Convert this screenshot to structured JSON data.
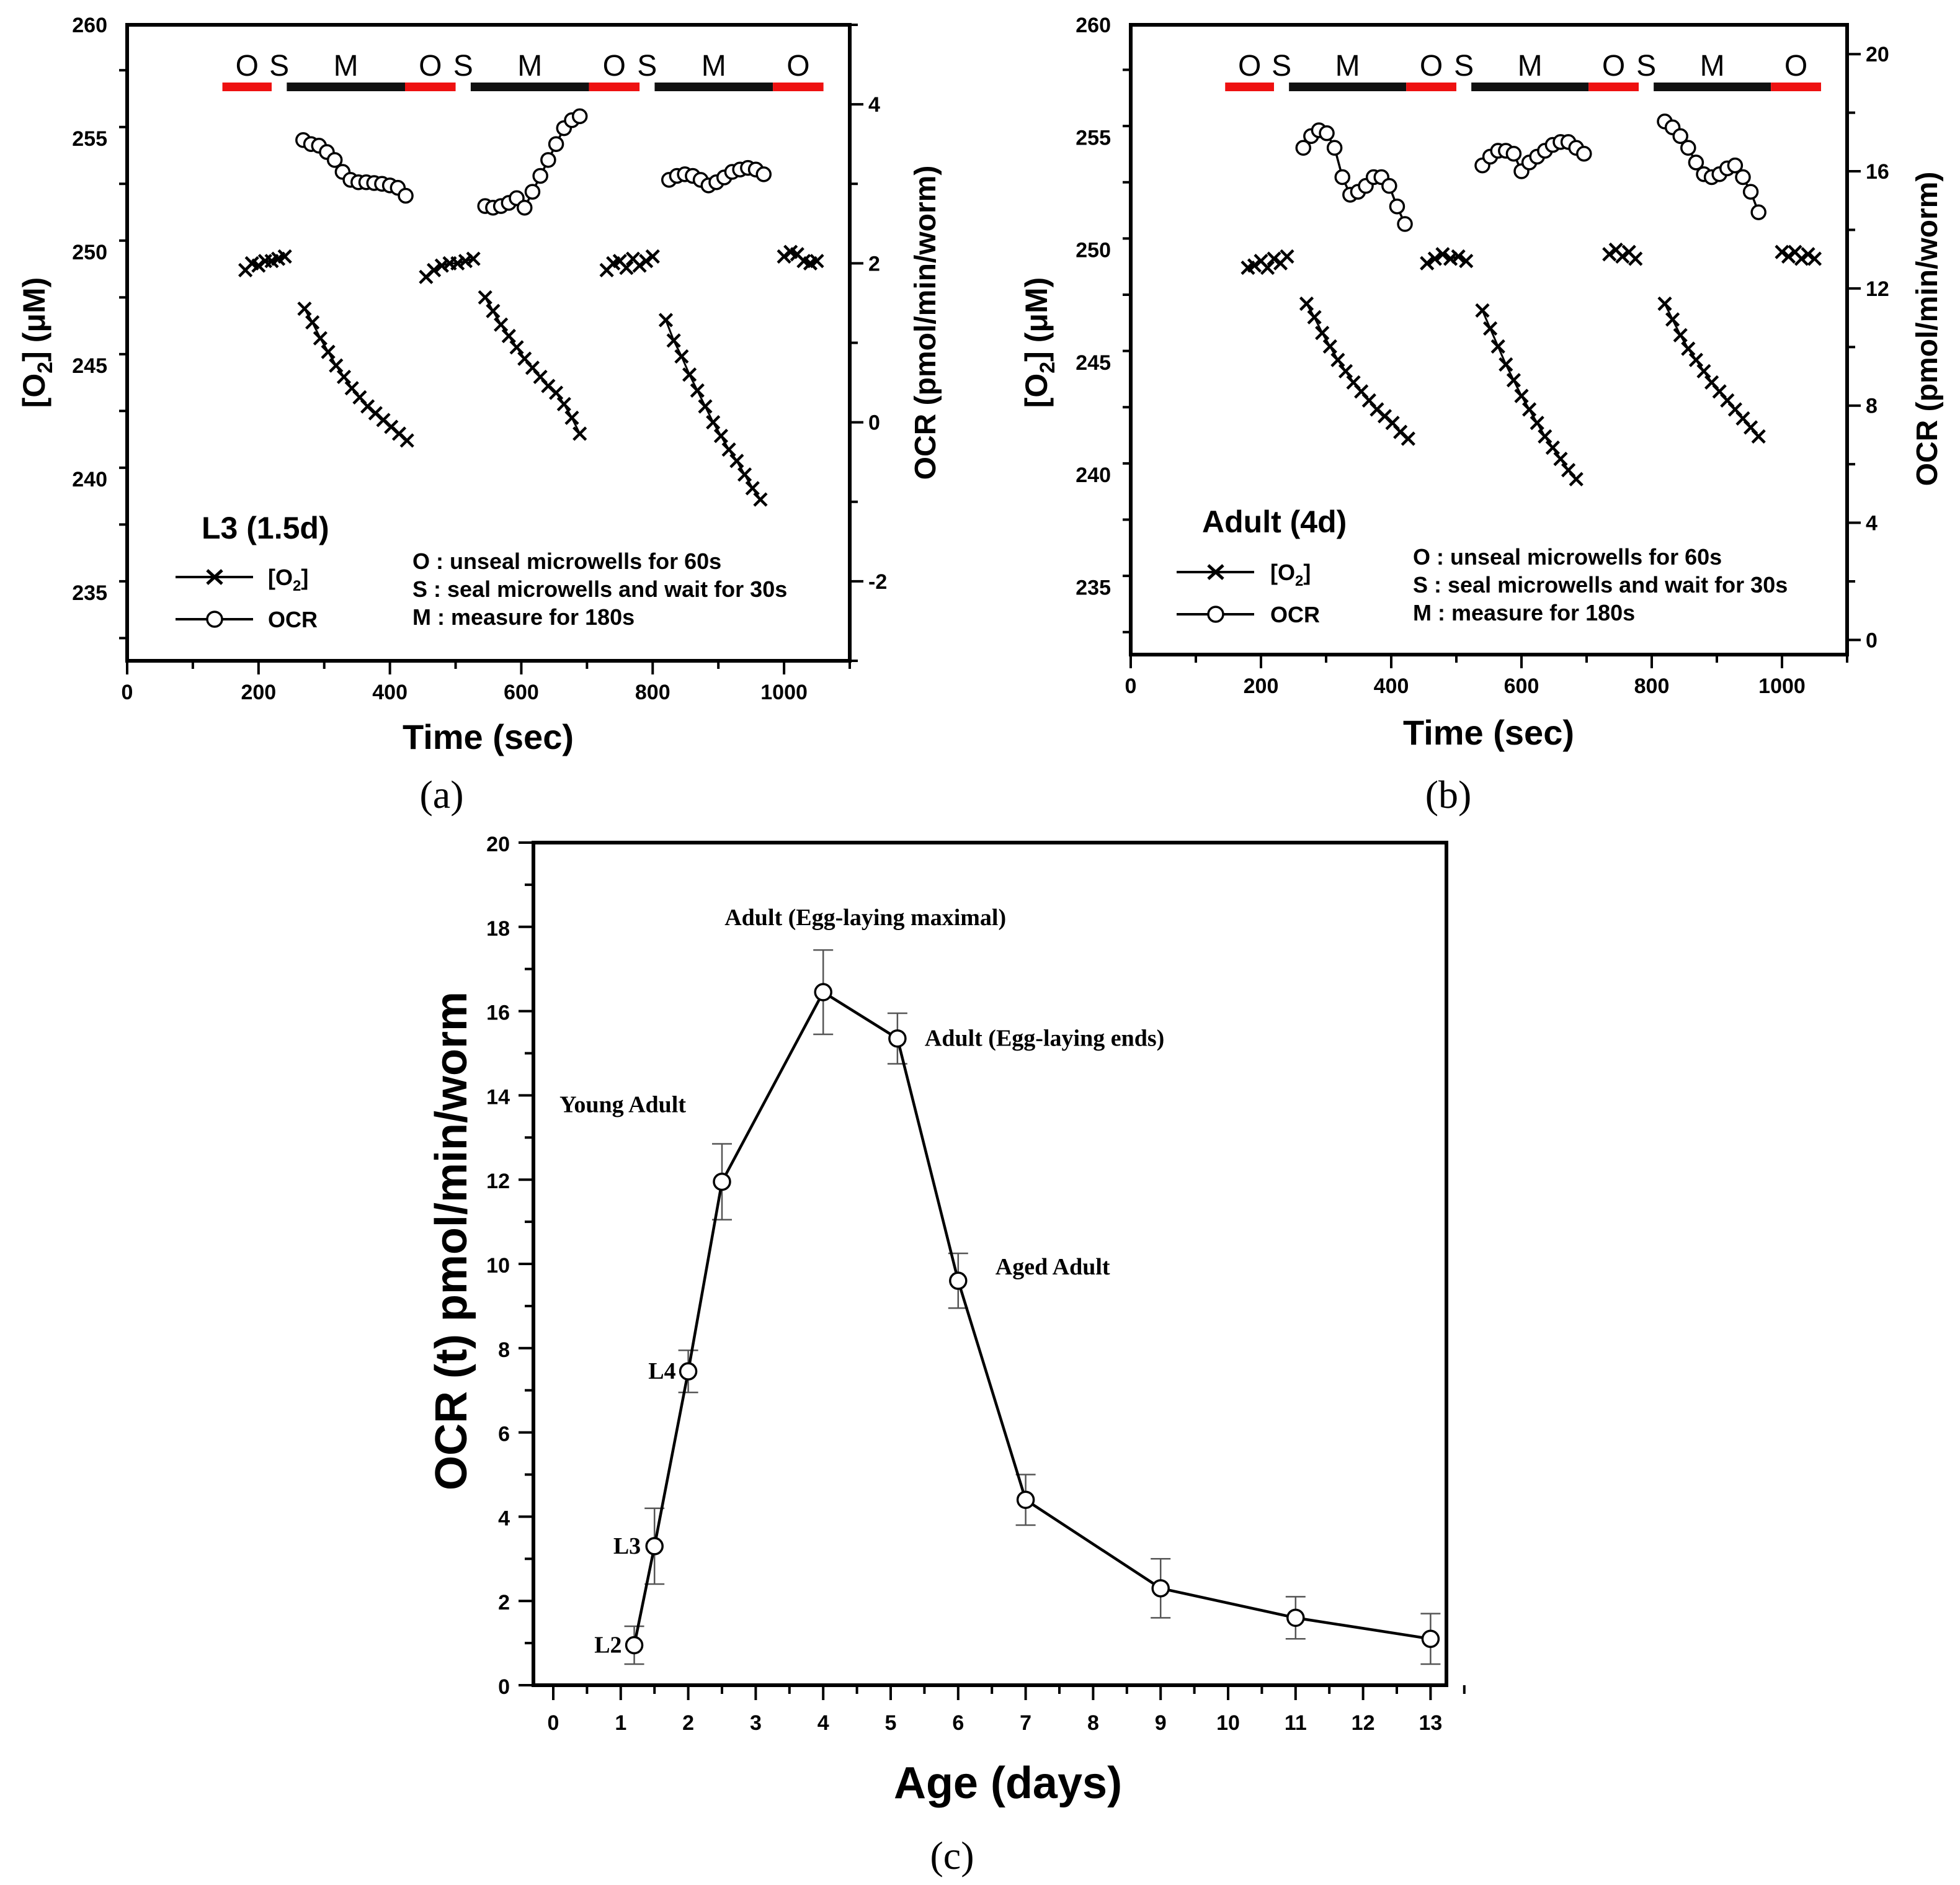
{
  "chart_data": [
    {
      "type": "scatter",
      "panel": "a",
      "caption": "(a)",
      "xlabel": "Time (sec)",
      "ylabel_left": "[O2] (μM)",
      "ylabel_right": "OCR (pmol/min/worm)",
      "xlim": [
        0,
        1100
      ],
      "ylim_left": [
        232,
        260
      ],
      "ylim_right": [
        -3,
        5
      ],
      "x_ticks": [
        "0",
        "200",
        "400",
        "600",
        "800",
        "1000"
      ],
      "y_left_ticks": [
        "235",
        "240",
        "245",
        "250",
        "255",
        "260"
      ],
      "y_right_ticks": [
        "-2",
        "0",
        "2",
        "4"
      ],
      "title": "L3 (1.5d)",
      "phase_labels": [
        "O",
        "S",
        "M",
        "O",
        "S",
        "M",
        "O",
        "S",
        "M",
        "O"
      ],
      "phases": [
        {
          "label": "O",
          "start": 145,
          "end": 220,
          "color": "#ee1111"
        },
        {
          "label": "S",
          "start": 220,
          "end": 243,
          "color": ""
        },
        {
          "label": "M",
          "start": 243,
          "end": 423,
          "color": "#111111"
        },
        {
          "label": "O",
          "start": 423,
          "end": 500,
          "color": "#ee1111"
        },
        {
          "label": "S",
          "start": 500,
          "end": 523,
          "color": ""
        },
        {
          "label": "M",
          "start": 523,
          "end": 703,
          "color": "#111111"
        },
        {
          "label": "O",
          "start": 703,
          "end": 780,
          "color": "#ee1111"
        },
        {
          "label": "S",
          "start": 780,
          "end": 803,
          "color": ""
        },
        {
          "label": "M",
          "start": 803,
          "end": 983,
          "color": "#111111"
        },
        {
          "label": "O",
          "start": 983,
          "end": 1060,
          "color": "#ee1111"
        }
      ],
      "legend": [
        "[O2]",
        "OCR"
      ],
      "notes": [
        "O : unseal microwells for 60s",
        "S : seal microwells and wait for 30s",
        "M : measure for 180s"
      ],
      "o2_series": [
        {
          "x": [
            180,
            190,
            200,
            210,
            220,
            230,
            240
          ],
          "y": [
            249.2,
            249.5,
            249.4,
            249.6,
            249.6,
            249.7,
            249.8
          ]
        },
        {
          "x": [
            270,
            282,
            294,
            306,
            318,
            330,
            342,
            354,
            366,
            378,
            390,
            402,
            414,
            426
          ],
          "y": [
            247.5,
            246.9,
            246.2,
            245.6,
            245.0,
            244.5,
            244.0,
            243.6,
            243.2,
            242.9,
            242.6,
            242.3,
            242.0,
            241.7
          ]
        },
        {
          "x": [
            455,
            467,
            479,
            491,
            503,
            515,
            527
          ],
          "y": [
            248.9,
            249.2,
            249.4,
            249.5,
            249.5,
            249.6,
            249.7
          ]
        },
        {
          "x": [
            545,
            557,
            569,
            581,
            593,
            605,
            617,
            629,
            641,
            653,
            665,
            677,
            689
          ],
          "y": [
            248.0,
            247.4,
            246.8,
            246.3,
            245.8,
            245.3,
            244.9,
            244.5,
            244.1,
            243.8,
            243.3,
            242.7,
            242.0
          ]
        },
        {
          "x": [
            730,
            740,
            750,
            760,
            770,
            780,
            790,
            800
          ],
          "y": [
            249.2,
            249.5,
            249.6,
            249.3,
            249.7,
            249.4,
            249.6,
            249.8
          ]
        },
        {
          "x": [
            820,
            832,
            844,
            856,
            868,
            880,
            892,
            904,
            916,
            928,
            940,
            952,
            964
          ],
          "y": [
            247.0,
            246.1,
            245.4,
            244.6,
            243.9,
            243.2,
            242.5,
            241.9,
            241.3,
            240.8,
            240.2,
            239.6,
            239.1
          ]
        },
        {
          "x": [
            1000,
            1010,
            1020,
            1030,
            1040,
            1050
          ],
          "y": [
            249.8,
            250.0,
            249.9,
            249.6,
            249.5,
            249.6
          ]
        }
      ],
      "ocr_series": [
        {
          "x": [
            268,
            280,
            292,
            304,
            316,
            328,
            340,
            352,
            364,
            376,
            388,
            400,
            412,
            424
          ],
          "y": [
            3.55,
            3.5,
            3.48,
            3.4,
            3.3,
            3.15,
            3.05,
            3.02,
            3.02,
            3.01,
            3.0,
            2.98,
            2.95,
            2.85
          ]
        },
        {
          "x": [
            545,
            557,
            569,
            581,
            593,
            605,
            617,
            629,
            641,
            653,
            665,
            677,
            689
          ],
          "y": [
            2.72,
            2.7,
            2.72,
            2.76,
            2.82,
            2.7,
            2.9,
            3.1,
            3.3,
            3.5,
            3.7,
            3.8,
            3.85
          ]
        },
        {
          "x": [
            825,
            837,
            849,
            861,
            873,
            885,
            897,
            909,
            921,
            933,
            945,
            957,
            969
          ],
          "y": [
            3.05,
            3.1,
            3.12,
            3.1,
            3.05,
            2.98,
            3.02,
            3.08,
            3.15,
            3.18,
            3.2,
            3.18,
            3.12
          ]
        }
      ]
    },
    {
      "type": "scatter",
      "panel": "b",
      "caption": "(b)",
      "xlabel": "Time (sec)",
      "ylabel_left": "[O2] (μM)",
      "ylabel_right": "OCR (pmol/min/worm)",
      "xlim": [
        0,
        1100
      ],
      "ylim_left": [
        232,
        260
      ],
      "ylim_right": [
        -0.5,
        21
      ],
      "x_ticks": [
        "0",
        "200",
        "400",
        "600",
        "800",
        "1000"
      ],
      "y_left_ticks": [
        "235",
        "240",
        "245",
        "250",
        "255",
        "260"
      ],
      "y_right_ticks": [
        "0",
        "4",
        "8",
        "12",
        "16",
        "20"
      ],
      "title": "Adult (4d)",
      "phase_labels": [
        "O",
        "S",
        "M",
        "O",
        "S",
        "M",
        "O",
        "S",
        "M",
        "O"
      ],
      "phases": [
        {
          "label": "O",
          "start": 145,
          "end": 220,
          "color": "#ee1111"
        },
        {
          "label": "S",
          "start": 220,
          "end": 243,
          "color": ""
        },
        {
          "label": "M",
          "start": 243,
          "end": 423,
          "color": "#111111"
        },
        {
          "label": "O",
          "start": 423,
          "end": 500,
          "color": "#ee1111"
        },
        {
          "label": "S",
          "start": 500,
          "end": 523,
          "color": ""
        },
        {
          "label": "M",
          "start": 523,
          "end": 703,
          "color": "#111111"
        },
        {
          "label": "O",
          "start": 703,
          "end": 780,
          "color": "#ee1111"
        },
        {
          "label": "S",
          "start": 780,
          "end": 803,
          "color": ""
        },
        {
          "label": "M",
          "start": 803,
          "end": 983,
          "color": "#111111"
        },
        {
          "label": "O",
          "start": 983,
          "end": 1060,
          "color": "#ee1111"
        }
      ],
      "legend": [
        "[O2]",
        "OCR"
      ],
      "notes": [
        "O : unseal microwells for 60s",
        "S : seal microwells and wait for 30s",
        "M : measure for 180s"
      ],
      "o2_series": [
        {
          "x": [
            180,
            190,
            200,
            210,
            220,
            230,
            240
          ],
          "y": [
            249.2,
            249.3,
            249.5,
            249.2,
            249.6,
            249.4,
            249.7
          ]
        },
        {
          "x": [
            270,
            282,
            294,
            306,
            318,
            330,
            342,
            354,
            366,
            378,
            390,
            402,
            414,
            426
          ],
          "y": [
            247.6,
            247.0,
            246.3,
            245.7,
            245.1,
            244.6,
            244.1,
            243.7,
            243.3,
            242.9,
            242.6,
            242.3,
            241.9,
            241.6
          ]
        },
        {
          "x": [
            455,
            467,
            479,
            491,
            503,
            515
          ],
          "y": [
            249.4,
            249.6,
            249.8,
            249.6,
            249.7,
            249.5
          ]
        },
        {
          "x": [
            540,
            552,
            564,
            576,
            588,
            600,
            612,
            624,
            636,
            648,
            660,
            672,
            684
          ],
          "y": [
            247.3,
            246.5,
            245.7,
            244.9,
            244.2,
            243.5,
            242.9,
            242.3,
            241.7,
            241.2,
            240.7,
            240.2,
            239.8
          ]
        },
        {
          "x": [
            735,
            745,
            755,
            765,
            775
          ],
          "y": [
            249.8,
            250.0,
            249.7,
            249.9,
            249.6
          ]
        },
        {
          "x": [
            820,
            832,
            844,
            856,
            868,
            880,
            892,
            904,
            916,
            928,
            940,
            952,
            964
          ],
          "y": [
            247.6,
            246.9,
            246.2,
            245.6,
            245.1,
            244.6,
            244.1,
            243.7,
            243.3,
            242.9,
            242.5,
            242.1,
            241.7
          ]
        },
        {
          "x": [
            1000,
            1010,
            1020,
            1030,
            1040,
            1050
          ],
          "y": [
            249.9,
            249.7,
            249.9,
            249.6,
            249.8,
            249.6
          ]
        }
      ],
      "ocr_series": [
        {
          "x": [
            265,
            277,
            289,
            301,
            313,
            325,
            337,
            349,
            361,
            373,
            385,
            397,
            409,
            421
          ],
          "y": [
            16.8,
            17.2,
            17.4,
            17.3,
            16.8,
            15.8,
            15.2,
            15.3,
            15.5,
            15.8,
            15.8,
            15.5,
            14.8,
            14.2
          ]
        },
        {
          "x": [
            540,
            552,
            564,
            576,
            588,
            600,
            612,
            624,
            636,
            648,
            660,
            672,
            684,
            696
          ],
          "y": [
            16.2,
            16.5,
            16.7,
            16.7,
            16.6,
            16.0,
            16.3,
            16.5,
            16.7,
            16.9,
            17.0,
            17.0,
            16.8,
            16.6
          ]
        },
        {
          "x": [
            820,
            832,
            844,
            856,
            868,
            880,
            892,
            904,
            916,
            928,
            940,
            952,
            964
          ],
          "y": [
            17.7,
            17.5,
            17.2,
            16.8,
            16.3,
            15.9,
            15.8,
            15.9,
            16.1,
            16.2,
            15.8,
            15.3,
            14.6
          ]
        }
      ]
    },
    {
      "type": "line",
      "panel": "c",
      "caption": "(c)",
      "xlabel": "Age (days)",
      "ylabel": "OCR (t) pmol/min/worm",
      "xlim": [
        0,
        13.5
      ],
      "ylim": [
        0,
        20
      ],
      "x_ticks": [
        "0",
        "1",
        "2",
        "3",
        "4",
        "5",
        "6",
        "7",
        "8",
        "9",
        "10",
        "11",
        "12",
        "13"
      ],
      "y_ticks": [
        "0",
        "2",
        "4",
        "6",
        "8",
        "10",
        "12",
        "14",
        "16",
        "18",
        "20"
      ],
      "x": [
        1.2,
        1.5,
        2.0,
        2.5,
        4.0,
        5.1,
        6.0,
        7.0,
        9.0,
        11.0,
        13.0
      ],
      "values": [
        0.95,
        3.3,
        7.45,
        11.95,
        16.45,
        15.35,
        9.6,
        4.4,
        2.3,
        1.6,
        1.1
      ],
      "errors": [
        0.45,
        0.9,
        0.5,
        0.9,
        1.0,
        0.6,
        0.65,
        0.6,
        0.7,
        0.5,
        0.6
      ],
      "annotations": [
        {
          "text": "L2",
          "x": 1.2,
          "y": 0.95
        },
        {
          "text": "L3",
          "x": 1.5,
          "y": 3.3
        },
        {
          "text": "L4",
          "x": 2.0,
          "y": 7.45
        },
        {
          "text": "Young Adult",
          "x": 2.5,
          "y": 11.95
        },
        {
          "text": "Adult (Egg-laying maximal)",
          "x": 4.0,
          "y": 16.45
        },
        {
          "text": "Adult (Egg-laying ends)",
          "x": 5.1,
          "y": 15.35
        },
        {
          "text": "Aged Adult",
          "x": 6.0,
          "y": 9.6
        }
      ]
    }
  ]
}
